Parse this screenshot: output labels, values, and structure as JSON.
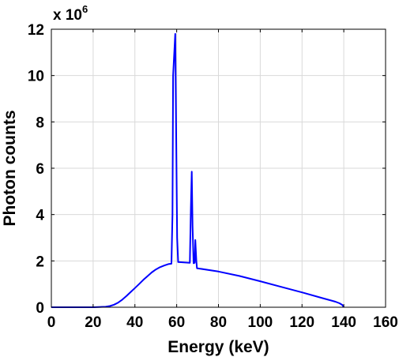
{
  "chart_data": {
    "type": "line",
    "title": "",
    "xlabel": "Energy (keV)",
    "ylabel": "Photon counts",
    "xlim": [
      0,
      160
    ],
    "ylim": [
      0,
      12
    ],
    "x_ticks": [
      0,
      20,
      40,
      60,
      80,
      100,
      120,
      140,
      160
    ],
    "y_ticks": [
      0,
      2,
      4,
      6,
      8,
      10,
      12
    ],
    "y_multiplier": {
      "base": "x 10",
      "exponent": "6"
    },
    "grid": true,
    "legend": "none",
    "line_color": "#0000ff",
    "series": [
      {
        "x": [
          0,
          20,
          26,
          28,
          30,
          32,
          34,
          36,
          38,
          40,
          42,
          44,
          46,
          48,
          50,
          52,
          54,
          56,
          57.5,
          58,
          58.3,
          59.3,
          60.2,
          60.7,
          66.3,
          66.8,
          67.2,
          67.6,
          68.1,
          68.6,
          68.9,
          69.4,
          69.7,
          70,
          80,
          90,
          100,
          110,
          120,
          130,
          136,
          138,
          139.3,
          140
        ],
        "y": [
          0,
          0,
          0.02,
          0.05,
          0.11,
          0.2,
          0.33,
          0.49,
          0.66,
          0.83,
          1.0,
          1.18,
          1.34,
          1.5,
          1.63,
          1.73,
          1.8,
          1.86,
          1.88,
          4.0,
          10.0,
          11.8,
          3.0,
          1.95,
          1.92,
          4.3,
          5.85,
          3.5,
          1.9,
          1.92,
          2.9,
          2.0,
          1.68,
          1.68,
          1.54,
          1.35,
          1.12,
          0.88,
          0.64,
          0.39,
          0.24,
          0.17,
          0.1,
          0.0
        ]
      }
    ]
  }
}
